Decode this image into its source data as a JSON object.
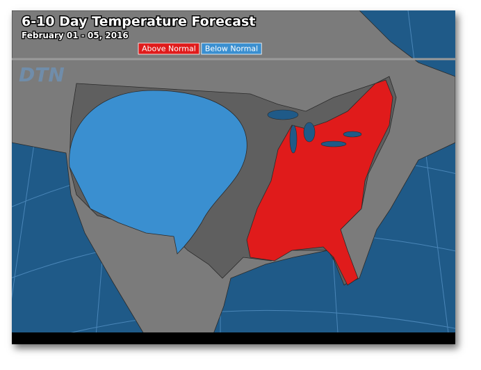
{
  "header": {
    "title": "6-10 Day Temperature Forecast",
    "subtitle": "February 01 - 05, 2016"
  },
  "legend": [
    {
      "label": "Above Normal",
      "color": "#e01b1b"
    },
    {
      "label": "Below Normal",
      "color": "#3a8fd0"
    }
  ],
  "logo": "DTN"
}
